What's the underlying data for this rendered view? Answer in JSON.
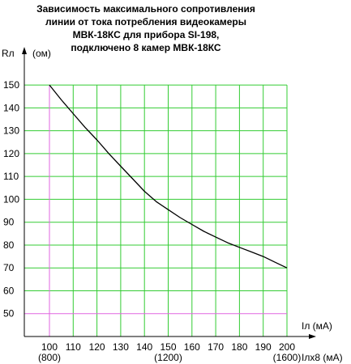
{
  "chart_data": {
    "type": "line",
    "title": [
      "Зависимость максимального сопротивления",
      "линии от тока потребления видеокамеры",
      "МВК-18КС для прибора SI-198,",
      "подключено 8 камер МВК-18КС"
    ],
    "ylabel": "Rл",
    "yunit": "(ом)",
    "xlabel": "Iл (мА)",
    "xlabel2": "Iлх8 (мА)",
    "xlim": [
      100,
      200
    ],
    "ylim": [
      40,
      155
    ],
    "x_ticks": [
      100,
      110,
      120,
      130,
      140,
      150,
      160,
      170,
      180,
      190,
      200
    ],
    "x_ticks_secondary": [
      {
        "x": 100,
        "label": "(800)"
      },
      {
        "x": 150,
        "label": "(1200)"
      },
      {
        "x": 200,
        "label": "(1600)"
      }
    ],
    "y_ticks": [
      50,
      60,
      70,
      80,
      90,
      100,
      110,
      120,
      130,
      140,
      150
    ],
    "grid": true,
    "colors": {
      "grid": "#33cc33",
      "reference": "#e066e0",
      "line": "#000000",
      "axis": "#000000"
    },
    "reference_lines": {
      "x": 100,
      "y": 50
    },
    "series": [
      {
        "x": [
          100,
          105,
          110,
          115,
          120,
          125,
          130,
          135,
          140,
          145,
          150,
          155,
          160,
          165,
          170,
          175,
          180,
          185,
          190,
          195,
          200
        ],
        "values": [
          150,
          143.5,
          137.5,
          131.5,
          126,
          120,
          114.5,
          109,
          103.5,
          99,
          95.5,
          92,
          89,
          86,
          83.5,
          81,
          79,
          77,
          75,
          72.5,
          70
        ]
      }
    ]
  }
}
